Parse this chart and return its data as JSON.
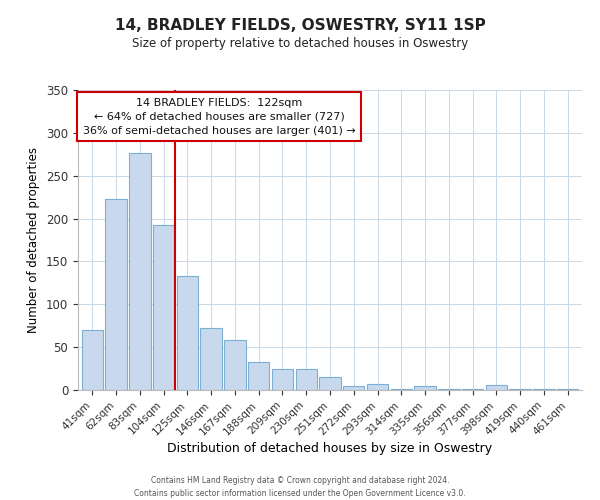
{
  "title": "14, BRADLEY FIELDS, OSWESTRY, SY11 1SP",
  "subtitle": "Size of property relative to detached houses in Oswestry",
  "xlabel": "Distribution of detached houses by size in Oswestry",
  "ylabel": "Number of detached properties",
  "footer_line1": "Contains HM Land Registry data © Crown copyright and database right 2024.",
  "footer_line2": "Contains public sector information licensed under the Open Government Licence v3.0.",
  "bar_labels": [
    "41sqm",
    "62sqm",
    "83sqm",
    "104sqm",
    "125sqm",
    "146sqm",
    "167sqm",
    "188sqm",
    "209sqm",
    "230sqm",
    "251sqm",
    "272sqm",
    "293sqm",
    "314sqm",
    "335sqm",
    "356sqm",
    "377sqm",
    "398sqm",
    "419sqm",
    "440sqm",
    "461sqm"
  ],
  "bar_values": [
    70,
    223,
    277,
    193,
    133,
    72,
    58,
    33,
    24,
    25,
    15,
    5,
    7,
    1,
    5,
    1,
    1,
    6,
    1,
    1,
    1
  ],
  "bar_color": "#c8d9ed",
  "bar_edge_color": "#7bafd4",
  "highlight_index": 4,
  "highlight_color": "#cc0000",
  "annotation_title": "14 BRADLEY FIELDS:  122sqm",
  "annotation_line1": "← 64% of detached houses are smaller (727)",
  "annotation_line2": "36% of semi-detached houses are larger (401) →",
  "annotation_box_color": "#ffffff",
  "annotation_box_edge": "#cc0000",
  "ylim": [
    0,
    350
  ],
  "yticks": [
    0,
    50,
    100,
    150,
    200,
    250,
    300,
    350
  ]
}
